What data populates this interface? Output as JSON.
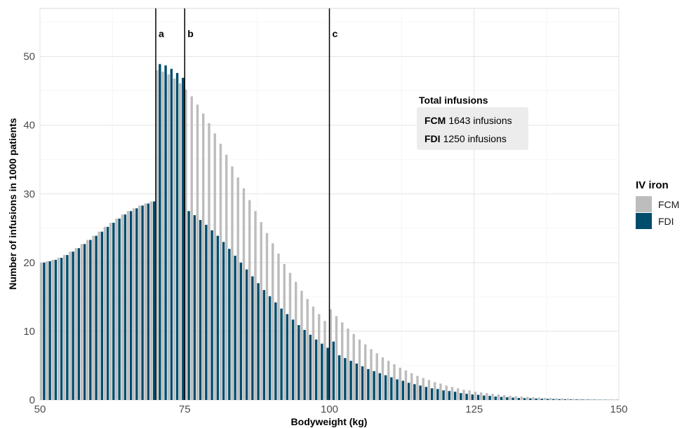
{
  "chart_data": {
    "type": "bar",
    "xlabel": "Bodyweight (kg)",
    "ylabel": "Number of infusions in 1000 patients",
    "xlim": [
      50,
      150
    ],
    "ylim": [
      0,
      57
    ],
    "xticks": [
      50,
      75,
      100,
      125,
      150
    ],
    "yticks": [
      0,
      10,
      20,
      30,
      40,
      50
    ],
    "grid": true,
    "legend": {
      "title": "IV iron",
      "position": "right",
      "entries": [
        {
          "label": "FCM",
          "color": "#bdbdbd"
        },
        {
          "label": "FDI",
          "color": "#004c6d"
        }
      ]
    },
    "vlines": [
      {
        "x": 70,
        "label": "a"
      },
      {
        "x": 75,
        "label": "b"
      },
      {
        "x": 100,
        "label": "c"
      }
    ],
    "annotation": {
      "title": "Total infusions",
      "rows": [
        {
          "name": "FCM",
          "text": "1643 infusions"
        },
        {
          "name": "FDI",
          "text": "1250 infusions"
        }
      ]
    },
    "x": [
      50,
      51,
      52,
      53,
      54,
      55,
      56,
      57,
      58,
      59,
      60,
      61,
      62,
      63,
      64,
      65,
      66,
      67,
      68,
      69,
      70,
      71,
      72,
      73,
      74,
      75,
      76,
      77,
      78,
      79,
      80,
      81,
      82,
      83,
      84,
      85,
      86,
      87,
      88,
      89,
      90,
      91,
      92,
      93,
      94,
      95,
      96,
      97,
      98,
      99,
      100,
      101,
      102,
      103,
      104,
      105,
      106,
      107,
      108,
      109,
      110,
      111,
      112,
      113,
      114,
      115,
      116,
      117,
      118,
      119,
      120,
      121,
      122,
      123,
      124,
      125,
      126,
      127,
      128,
      129,
      130,
      131,
      132,
      133,
      134,
      135,
      136,
      137,
      138,
      139,
      140,
      141,
      142,
      143,
      144,
      145,
      146,
      147,
      148,
      149
    ],
    "series": [
      {
        "name": "FCM",
        "color": "#bdbdbd",
        "values": [
          20.0,
          20.2,
          20.4,
          20.7,
          21.1,
          21.6,
          22.1,
          22.7,
          23.3,
          23.9,
          24.5,
          25.2,
          25.8,
          26.4,
          27.0,
          27.5,
          27.9,
          28.3,
          28.6,
          28.9,
          48.0,
          47.8,
          47.4,
          46.8,
          46.1,
          45.2,
          44.2,
          43.0,
          41.7,
          40.3,
          38.8,
          37.3,
          35.7,
          34.0,
          32.4,
          30.8,
          29.1,
          27.5,
          25.9,
          24.3,
          22.8,
          21.3,
          19.8,
          18.5,
          17.2,
          15.9,
          14.7,
          13.6,
          12.5,
          11.5,
          13.2,
          12.2,
          11.3,
          10.4,
          9.6,
          8.8,
          8.1,
          7.4,
          6.8,
          6.2,
          5.7,
          5.2,
          4.7,
          4.3,
          3.9,
          3.5,
          3.2,
          2.9,
          2.6,
          2.4,
          2.1,
          1.9,
          1.7,
          1.5,
          1.4,
          1.2,
          1.1,
          1.0,
          0.9,
          0.8,
          0.7,
          0.6,
          0.55,
          0.5,
          0.45,
          0.4,
          0.35,
          0.3,
          0.28,
          0.25,
          0.22,
          0.2,
          0.17,
          0.15,
          0.13,
          0.12,
          0.1,
          0.09,
          0.08,
          0.07
        ]
      },
      {
        "name": "FDI",
        "color": "#004c6d",
        "values": [
          20.0,
          20.2,
          20.4,
          20.7,
          21.1,
          21.6,
          22.1,
          22.7,
          23.3,
          23.9,
          24.5,
          25.2,
          25.8,
          26.4,
          27.0,
          27.5,
          27.9,
          28.3,
          28.6,
          28.9,
          48.9,
          48.7,
          48.2,
          47.6,
          46.9,
          27.5,
          26.9,
          26.2,
          25.5,
          24.7,
          23.9,
          23.0,
          22.0,
          21.0,
          20.0,
          19.0,
          18.0,
          17.0,
          16.0,
          15.1,
          14.2,
          13.3,
          12.5,
          11.7,
          10.9,
          10.2,
          9.5,
          8.8,
          8.2,
          7.6,
          8.5,
          6.5,
          6.1,
          5.7,
          5.3,
          4.9,
          4.5,
          4.2,
          3.9,
          3.6,
          3.3,
          3.0,
          2.8,
          2.5,
          2.3,
          2.1,
          1.9,
          1.7,
          1.6,
          1.4,
          1.3,
          1.2,
          1.0,
          0.9,
          0.8,
          0.75,
          0.65,
          0.6,
          0.5,
          0.45,
          0.4,
          0.35,
          0.3,
          0.27,
          0.24,
          0.21,
          0.18,
          0.16,
          0.14,
          0.12,
          0.1,
          0.09,
          0.08,
          0.07,
          0.06,
          0.05,
          0.04,
          0.04,
          0.03,
          0.03
        ]
      }
    ]
  }
}
